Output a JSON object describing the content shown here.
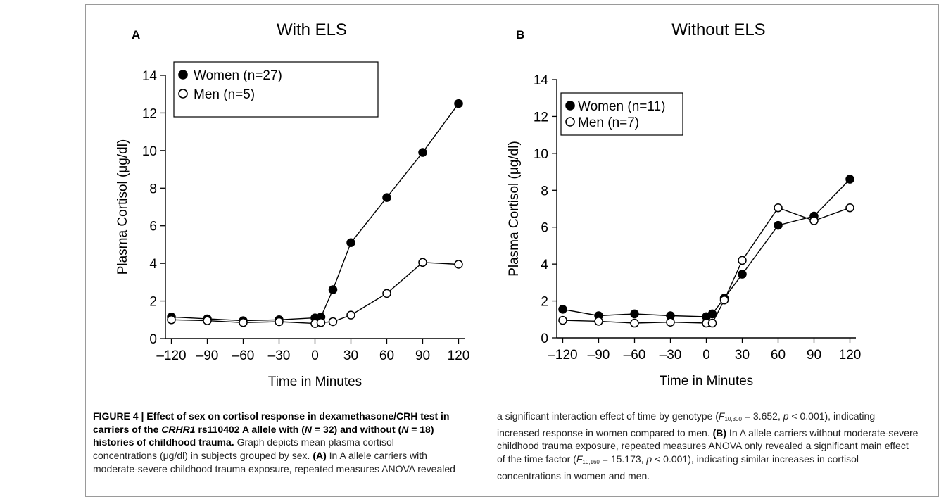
{
  "chart_data": [
    {
      "panel_label": "A",
      "type": "line",
      "title": "With ELS",
      "xlabel": "Time in Minutes",
      "ylabel": "Plasma Cortisol (μg/dl)",
      "x_ticks": [
        -120,
        -90,
        -60,
        -30,
        0,
        30,
        60,
        90,
        120
      ],
      "x_tick_labels": [
        "–120",
        "–90",
        "–60",
        "–30",
        "0",
        "30",
        "60",
        "90",
        "120"
      ],
      "y_ticks": [
        0,
        2,
        4,
        6,
        8,
        10,
        12,
        14
      ],
      "xlim": [
        -125,
        125
      ],
      "ylim": [
        0,
        14
      ],
      "legend_position": "top-left",
      "series": [
        {
          "name": "Women (n=27)",
          "marker": "filled-circle",
          "x": [
            -120,
            -90,
            -60,
            -30,
            0,
            5,
            15,
            30,
            60,
            90,
            120
          ],
          "y": [
            1.15,
            1.05,
            0.95,
            1.0,
            1.1,
            1.15,
            2.6,
            5.1,
            7.5,
            9.9,
            12.5
          ]
        },
        {
          "name": "Men (n=5)",
          "marker": "open-circle",
          "x": [
            -120,
            -90,
            -60,
            -30,
            0,
            5,
            15,
            30,
            60,
            90,
            120
          ],
          "y": [
            1.0,
            0.95,
            0.85,
            0.9,
            0.8,
            0.85,
            0.9,
            1.25,
            2.4,
            4.05,
            3.95
          ]
        }
      ]
    },
    {
      "panel_label": "B",
      "type": "line",
      "title": "Without ELS",
      "xlabel": "Time in Minutes",
      "ylabel": "Plasma Cortisol (μg/dl)",
      "x_ticks": [
        -120,
        -90,
        -60,
        -30,
        0,
        30,
        60,
        90,
        120
      ],
      "x_tick_labels": [
        "–120",
        "–90",
        "–60",
        "–30",
        "0",
        "30",
        "60",
        "90",
        "120"
      ],
      "y_ticks": [
        0,
        2,
        4,
        6,
        8,
        10,
        12,
        14
      ],
      "xlim": [
        -125,
        125
      ],
      "ylim": [
        0,
        14
      ],
      "legend_position": "top-left",
      "series": [
        {
          "name": "Women (n=11)",
          "marker": "filled-circle",
          "x": [
            -120,
            -90,
            -60,
            -30,
            0,
            5,
            15,
            30,
            60,
            90,
            120
          ],
          "y": [
            1.55,
            1.2,
            1.3,
            1.2,
            1.15,
            1.3,
            2.15,
            3.45,
            6.1,
            6.6,
            8.6
          ]
        },
        {
          "name": "Men (n=7)",
          "marker": "open-circle",
          "x": [
            -120,
            -90,
            -60,
            -30,
            0,
            5,
            15,
            30,
            60,
            90,
            120
          ],
          "y": [
            0.95,
            0.9,
            0.8,
            0.85,
            0.8,
            0.8,
            2.05,
            4.2,
            7.05,
            6.35,
            7.05
          ]
        }
      ]
    }
  ],
  "caption": {
    "left": {
      "bold_text": "FIGURE 4 | Effect of sex on cortisol response in dexamethasone/CRH test in carriers of the ",
      "gene": "CRHR1",
      "bold_after_gene": " rs110402 A allele with (",
      "n_sym_1": "N",
      "n_val_1": " = 32) and without (",
      "n_sym_2": "N",
      "n_val_2": " = 18) histories of childhood trauma.",
      "plain_1": " Graph depicts mean plasma cortisol concentrations (μg/dl) in subjects grouped by sex. ",
      "panel_a": "(A)",
      "plain_2": " In A allele carriers with moderate-severe childhood trauma exposure, repeated measures ANOVA revealed"
    },
    "right": {
      "plain_1": "a significant interaction effect of time by genotype (",
      "f_sym_1": "F",
      "f_sub_1": "10,300",
      "plain_2": " = 3.652, ",
      "p_sym_1": "p",
      "plain_3": " < 0.001), indicating increased response in women compared to men. ",
      "panel_b": "(B)",
      "plain_4": " In A allele carriers without moderate-severe childhood trauma exposure, repeated measures ANOVA only revealed a significant main effect of the time factor (",
      "f_sym_2": "F",
      "f_sub_2": "10,160",
      "plain_5": " = 15.173, ",
      "p_sym_2": "p",
      "plain_6": " < 0.001), indicating similar increases in cortisol concentrations in women and men."
    }
  }
}
